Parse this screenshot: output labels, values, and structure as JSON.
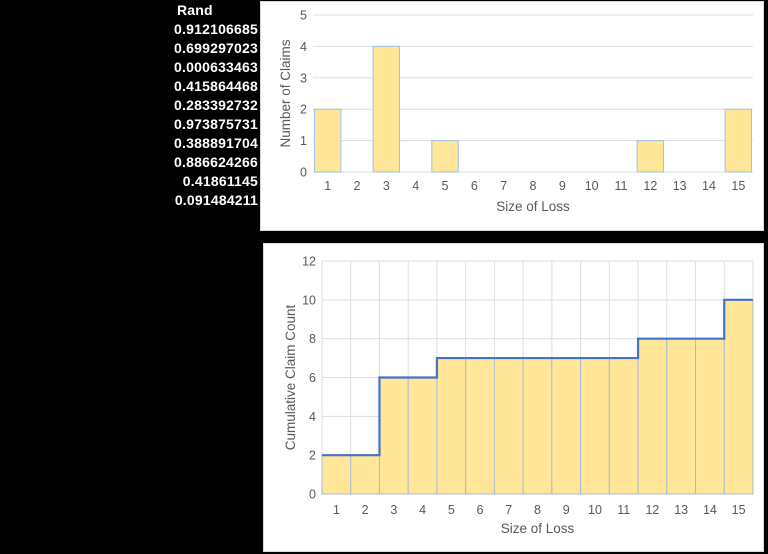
{
  "sheet": {
    "rand_header": "Rand",
    "rand_values": [
      "0.912106685",
      "0.699297023",
      "0.000633463",
      "0.415864468",
      "0.283392732",
      "0.973875731",
      "0.388891704",
      "0.886624266",
      "0.41861145",
      "0.091484211"
    ]
  },
  "colors": {
    "page_bg": "#000000",
    "cell_text": "#FFFFFF",
    "chart_bg": "#FFFFFF",
    "chart_border": "#D9D9D9",
    "gridline": "#DEDEDE",
    "axis_text": "#595959"
  },
  "chart_data": [
    {
      "type": "bar",
      "categories": [
        1,
        2,
        3,
        4,
        5,
        6,
        7,
        8,
        9,
        10,
        11,
        12,
        13,
        14,
        15
      ],
      "values": [
        2,
        0,
        4,
        0,
        1,
        0,
        0,
        0,
        0,
        0,
        0,
        1,
        0,
        0,
        2
      ],
      "xlabel": "Size of Loss",
      "ylabel": "Number of Claims",
      "ylim": [
        0,
        5
      ],
      "ytick_step": 1,
      "grid": "horizontal",
      "legend": "none",
      "bar_fill": "#FFE699",
      "bar_border": "#9DC3E6"
    },
    {
      "type": "step-area",
      "categories": [
        1,
        2,
        3,
        4,
        5,
        6,
        7,
        8,
        9,
        10,
        11,
        12,
        13,
        14,
        15
      ],
      "values": [
        2,
        2,
        6,
        6,
        7,
        7,
        7,
        7,
        7,
        7,
        7,
        8,
        8,
        8,
        10
      ],
      "xlabel": "Size of Loss",
      "ylabel": "Cumulative Claim Count",
      "ylim": [
        0,
        12
      ],
      "ytick_step": 2,
      "grid": "both",
      "legend": "none",
      "bar_fill": "#FFE699",
      "bar_border": "#ADB9D3",
      "line_color": "#4472C4"
    }
  ]
}
